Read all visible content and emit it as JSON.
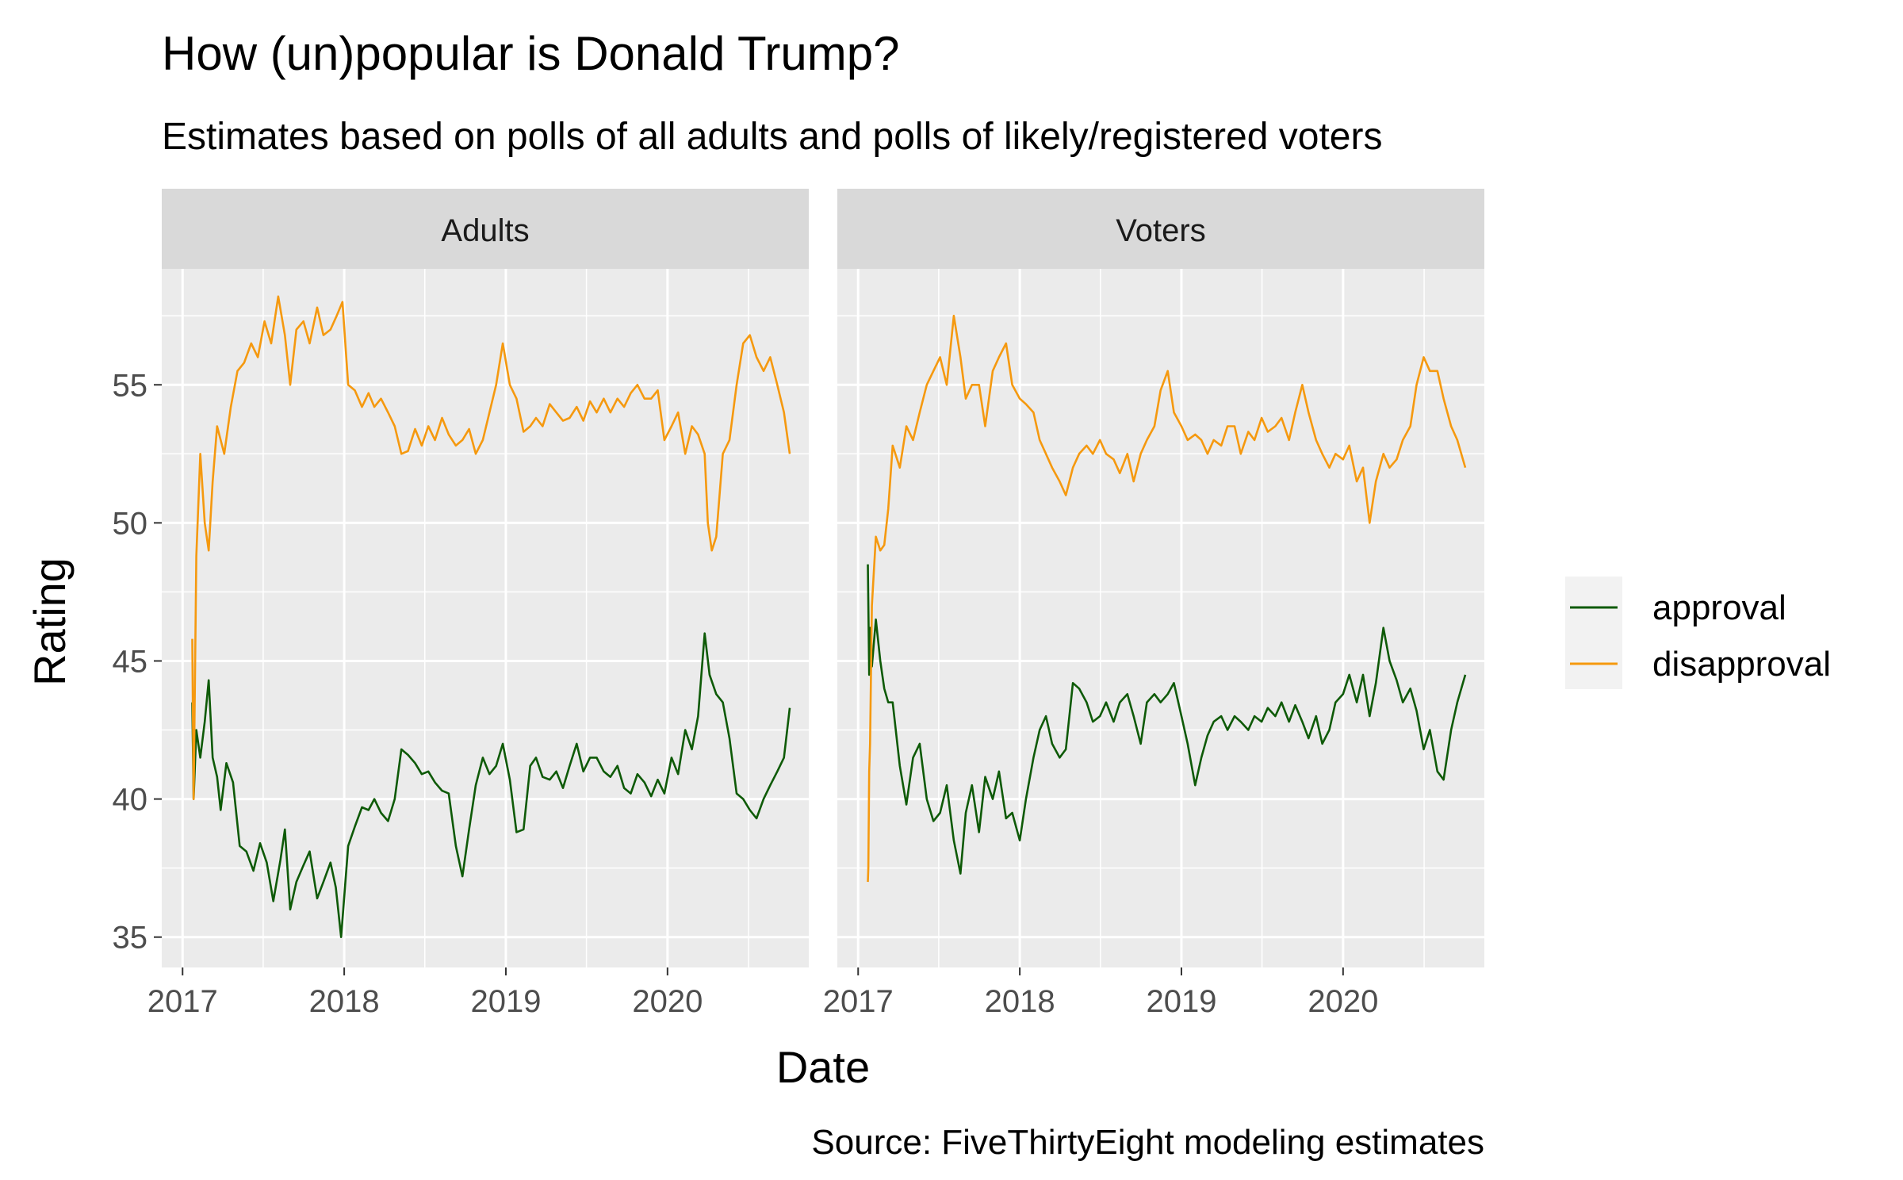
{
  "chart_data": {
    "type": "line",
    "title": "How (un)popular is Donald Trump?",
    "subtitle": "Estimates based on polls of all adults and polls of likely/registered voters",
    "caption": "Source: FiveThirtyEight modeling estimates",
    "xlabel": "Date",
    "ylabel": "Rating",
    "xlim": [
      "2016-11-15",
      "2020-11-15"
    ],
    "ylim": [
      33.9,
      59.2
    ],
    "x_ticks": [
      "2017-01-01",
      "2018-01-01",
      "2019-01-01",
      "2020-01-01"
    ],
    "x_tick_labels": [
      "2017",
      "2018",
      "2019",
      "2020"
    ],
    "y_ticks": [
      35,
      40,
      45,
      50,
      55
    ],
    "y_tick_labels": [
      "35",
      "40",
      "45",
      "50",
      "55"
    ],
    "grid": true,
    "legend": {
      "placement": "right",
      "entries": [
        {
          "name": "approval",
          "color": "#0e5a07"
        },
        {
          "name": "disapproval",
          "color": "#f5990f"
        }
      ]
    },
    "panels": [
      {
        "name": "Adults",
        "series": [
          {
            "name": "approval",
            "color": "#0e5a07",
            "x": [
              "2017-01-23",
              "2017-01-26",
              "2017-02-01",
              "2017-02-10",
              "2017-02-20",
              "2017-03-01",
              "2017-03-10",
              "2017-03-20",
              "2017-03-28",
              "2017-04-10",
              "2017-04-25",
              "2017-05-10",
              "2017-05-25",
              "2017-06-10",
              "2017-06-25",
              "2017-07-10",
              "2017-07-25",
              "2017-08-10",
              "2017-08-20",
              "2017-09-01",
              "2017-09-15",
              "2017-10-01",
              "2017-10-15",
              "2017-11-01",
              "2017-11-15",
              "2017-12-01",
              "2017-12-13",
              "2017-12-25",
              "2018-01-10",
              "2018-01-25",
              "2018-02-10",
              "2018-02-25",
              "2018-03-10",
              "2018-03-25",
              "2018-04-10",
              "2018-04-25",
              "2018-05-10",
              "2018-05-25",
              "2018-06-10",
              "2018-06-25",
              "2018-07-10",
              "2018-07-25",
              "2018-08-10",
              "2018-08-25",
              "2018-09-10",
              "2018-09-25",
              "2018-10-10",
              "2018-10-25",
              "2018-11-10",
              "2018-11-25",
              "2018-12-10",
              "2018-12-25",
              "2019-01-10",
              "2019-01-25",
              "2019-02-10",
              "2019-02-25",
              "2019-03-10",
              "2019-03-25",
              "2019-04-10",
              "2019-04-25",
              "2019-05-10",
              "2019-05-25",
              "2019-06-10",
              "2019-06-25",
              "2019-07-10",
              "2019-07-25",
              "2019-08-10",
              "2019-08-25",
              "2019-09-10",
              "2019-09-25",
              "2019-10-10",
              "2019-10-25",
              "2019-11-10",
              "2019-11-25",
              "2019-12-10",
              "2019-12-25",
              "2020-01-10",
              "2020-01-25",
              "2020-02-10",
              "2020-02-25",
              "2020-03-10",
              "2020-03-25",
              "2020-04-05",
              "2020-04-20",
              "2020-05-05",
              "2020-05-20",
              "2020-06-05",
              "2020-06-20",
              "2020-07-05",
              "2020-07-20",
              "2020-08-05",
              "2020-08-20",
              "2020-09-05",
              "2020-09-20",
              "2020-10-03"
            ],
            "y": [
              43.5,
              40.0,
              42.5,
              41.5,
              42.8,
              44.3,
              41.5,
              40.8,
              39.6,
              41.3,
              40.6,
              38.3,
              38.1,
              37.4,
              38.4,
              37.7,
              36.3,
              37.8,
              38.9,
              36.0,
              37.0,
              37.6,
              38.1,
              36.4,
              37.0,
              37.7,
              36.8,
              35.0,
              38.3,
              39.0,
              39.7,
              39.6,
              40.0,
              39.5,
              39.2,
              40.0,
              41.8,
              41.6,
              41.3,
              40.9,
              41.0,
              40.6,
              40.3,
              40.2,
              38.3,
              37.2,
              38.9,
              40.5,
              41.5,
              40.9,
              41.2,
              42.0,
              40.7,
              38.8,
              38.9,
              41.2,
              41.5,
              40.8,
              40.7,
              41.0,
              40.4,
              41.2,
              42.0,
              41.0,
              41.5,
              41.5,
              41.0,
              40.8,
              41.2,
              40.4,
              40.2,
              40.9,
              40.6,
              40.1,
              40.7,
              40.2,
              41.5,
              40.9,
              42.5,
              41.8,
              43.0,
              46.0,
              44.5,
              43.8,
              43.5,
              42.2,
              40.2,
              40.0,
              39.6,
              39.3,
              40.0,
              40.5,
              41.0,
              41.5,
              43.3
            ]
          },
          {
            "name": "disapproval",
            "color": "#f5990f",
            "x": [
              "2017-01-23",
              "2017-01-26",
              "2017-02-01",
              "2017-02-10",
              "2017-02-20",
              "2017-03-01",
              "2017-03-10",
              "2017-03-20",
              "2017-04-05",
              "2017-04-20",
              "2017-05-05",
              "2017-05-20",
              "2017-06-05",
              "2017-06-20",
              "2017-07-05",
              "2017-07-20",
              "2017-08-05",
              "2017-08-20",
              "2017-09-01",
              "2017-09-15",
              "2017-10-01",
              "2017-10-15",
              "2017-11-01",
              "2017-11-15",
              "2017-12-01",
              "2017-12-15",
              "2017-12-28",
              "2018-01-10",
              "2018-01-25",
              "2018-02-10",
              "2018-02-25",
              "2018-03-10",
              "2018-03-25",
              "2018-04-10",
              "2018-04-25",
              "2018-05-10",
              "2018-05-25",
              "2018-06-10",
              "2018-06-25",
              "2018-07-10",
              "2018-07-25",
              "2018-08-10",
              "2018-08-25",
              "2018-09-10",
              "2018-09-25",
              "2018-10-10",
              "2018-10-25",
              "2018-11-10",
              "2018-11-25",
              "2018-12-10",
              "2018-12-25",
              "2019-01-10",
              "2019-01-25",
              "2019-02-10",
              "2019-02-25",
              "2019-03-10",
              "2019-03-25",
              "2019-04-10",
              "2019-04-25",
              "2019-05-10",
              "2019-05-25",
              "2019-06-10",
              "2019-06-25",
              "2019-07-10",
              "2019-07-25",
              "2019-08-10",
              "2019-08-25",
              "2019-09-10",
              "2019-09-25",
              "2019-10-10",
              "2019-10-25",
              "2019-11-10",
              "2019-11-25",
              "2019-12-10",
              "2019-12-25",
              "2020-01-10",
              "2020-01-25",
              "2020-02-10",
              "2020-02-25",
              "2020-03-10",
              "2020-03-25",
              "2020-04-01",
              "2020-04-10",
              "2020-04-20",
              "2020-05-05",
              "2020-05-20",
              "2020-06-05",
              "2020-06-20",
              "2020-07-05",
              "2020-07-20",
              "2020-08-05",
              "2020-08-20",
              "2020-09-05",
              "2020-09-20",
              "2020-10-03"
            ],
            "y": [
              45.8,
              40.0,
              48.8,
              52.5,
              50.0,
              49.0,
              51.5,
              53.5,
              52.5,
              54.2,
              55.5,
              55.8,
              56.5,
              56.0,
              57.3,
              56.5,
              58.2,
              56.8,
              55.0,
              57.0,
              57.3,
              56.5,
              57.8,
              56.8,
              57.0,
              57.5,
              58.0,
              55.0,
              54.8,
              54.2,
              54.7,
              54.2,
              54.5,
              54.0,
              53.5,
              52.5,
              52.6,
              53.4,
              52.8,
              53.5,
              53.0,
              53.8,
              53.2,
              52.8,
              53.0,
              53.4,
              52.5,
              53.0,
              54.0,
              55.0,
              56.5,
              55.0,
              54.5,
              53.3,
              53.5,
              53.8,
              53.5,
              54.3,
              54.0,
              53.7,
              53.8,
              54.2,
              53.7,
              54.4,
              54.0,
              54.5,
              54.0,
              54.5,
              54.2,
              54.7,
              55.0,
              54.5,
              54.5,
              54.8,
              53.0,
              53.5,
              54.0,
              52.5,
              53.5,
              53.2,
              52.5,
              50.0,
              49.0,
              49.5,
              52.5,
              53.0,
              55.0,
              56.5,
              56.8,
              56.0,
              55.5,
              56.0,
              55.0,
              54.0,
              52.5
            ]
          }
        ]
      },
      {
        "name": "Voters",
        "series": [
          {
            "name": "approval",
            "color": "#0e5a07",
            "x": [
              "2017-01-23",
              "2017-01-26",
              "2017-01-28",
              "2017-02-01",
              "2017-02-10",
              "2017-02-20",
              "2017-03-01",
              "2017-03-10",
              "2017-03-20",
              "2017-04-05",
              "2017-04-20",
              "2017-05-05",
              "2017-05-20",
              "2017-06-05",
              "2017-06-20",
              "2017-07-05",
              "2017-07-20",
              "2017-08-05",
              "2017-08-20",
              "2017-09-01",
              "2017-09-15",
              "2017-10-01",
              "2017-10-15",
              "2017-11-01",
              "2017-11-15",
              "2017-12-01",
              "2017-12-15",
              "2018-01-01",
              "2018-01-15",
              "2018-02-01",
              "2018-02-15",
              "2018-03-01",
              "2018-03-15",
              "2018-04-01",
              "2018-04-15",
              "2018-05-01",
              "2018-05-15",
              "2018-06-01",
              "2018-06-15",
              "2018-07-01",
              "2018-07-15",
              "2018-08-01",
              "2018-08-15",
              "2018-09-01",
              "2018-09-15",
              "2018-10-01",
              "2018-10-15",
              "2018-11-01",
              "2018-11-15",
              "2018-12-01",
              "2018-12-15",
              "2019-01-01",
              "2019-01-15",
              "2019-02-01",
              "2019-02-15",
              "2019-03-01",
              "2019-03-15",
              "2019-04-01",
              "2019-04-15",
              "2019-05-01",
              "2019-05-15",
              "2019-06-01",
              "2019-06-15",
              "2019-07-01",
              "2019-07-15",
              "2019-08-01",
              "2019-08-15",
              "2019-09-01",
              "2019-09-15",
              "2019-10-01",
              "2019-10-15",
              "2019-11-01",
              "2019-11-15",
              "2019-12-01",
              "2019-12-15",
              "2020-01-01",
              "2020-01-15",
              "2020-02-01",
              "2020-02-15",
              "2020-03-01",
              "2020-03-15",
              "2020-04-01",
              "2020-04-15",
              "2020-05-01",
              "2020-05-15",
              "2020-06-01",
              "2020-06-15",
              "2020-07-01",
              "2020-07-15",
              "2020-08-01",
              "2020-08-15",
              "2020-09-01",
              "2020-09-15",
              "2020-10-03"
            ],
            "y": [
              48.5,
              44.5,
              46.2,
              44.8,
              46.5,
              45.0,
              44.0,
              43.5,
              43.5,
              41.2,
              39.8,
              41.5,
              42.0,
              40.0,
              39.2,
              39.5,
              40.5,
              38.5,
              37.3,
              39.5,
              40.5,
              38.8,
              40.8,
              40.0,
              41.0,
              39.3,
              39.5,
              38.5,
              40.0,
              41.5,
              42.5,
              43.0,
              42.0,
              41.5,
              41.8,
              44.2,
              44.0,
              43.5,
              42.8,
              43.0,
              43.5,
              42.8,
              43.5,
              43.8,
              43.0,
              42.0,
              43.5,
              43.8,
              43.5,
              43.8,
              44.2,
              43.0,
              42.0,
              40.5,
              41.5,
              42.3,
              42.8,
              43.0,
              42.5,
              43.0,
              42.8,
              42.5,
              43.0,
              42.8,
              43.3,
              43.0,
              43.5,
              42.8,
              43.4,
              42.8,
              42.2,
              43.0,
              42.0,
              42.5,
              43.5,
              43.8,
              44.5,
              43.5,
              44.5,
              43.0,
              44.2,
              46.2,
              45.0,
              44.3,
              43.5,
              44.0,
              43.2,
              41.8,
              42.5,
              41.0,
              40.7,
              42.5,
              43.5,
              44.5
            ]
          },
          {
            "name": "disapproval",
            "color": "#f5990f",
            "x": [
              "2017-01-23",
              "2017-01-24",
              "2017-01-26",
              "2017-01-28",
              "2017-02-01",
              "2017-02-10",
              "2017-02-20",
              "2017-03-01",
              "2017-03-10",
              "2017-03-20",
              "2017-04-05",
              "2017-04-20",
              "2017-05-05",
              "2017-05-20",
              "2017-06-05",
              "2017-06-20",
              "2017-07-05",
              "2017-07-20",
              "2017-08-05",
              "2017-08-20",
              "2017-09-01",
              "2017-09-15",
              "2017-10-01",
              "2017-10-15",
              "2017-11-01",
              "2017-11-15",
              "2017-12-01",
              "2017-12-15",
              "2018-01-01",
              "2018-01-15",
              "2018-02-01",
              "2018-02-15",
              "2018-03-01",
              "2018-03-15",
              "2018-04-01",
              "2018-04-15",
              "2018-05-01",
              "2018-05-15",
              "2018-06-01",
              "2018-06-15",
              "2018-07-01",
              "2018-07-15",
              "2018-08-01",
              "2018-08-15",
              "2018-09-01",
              "2018-09-15",
              "2018-10-01",
              "2018-10-15",
              "2018-11-01",
              "2018-11-15",
              "2018-12-01",
              "2018-12-15",
              "2019-01-01",
              "2019-01-15",
              "2019-02-01",
              "2019-02-15",
              "2019-03-01",
              "2019-03-15",
              "2019-04-01",
              "2019-04-15",
              "2019-05-01",
              "2019-05-15",
              "2019-06-01",
              "2019-06-15",
              "2019-07-01",
              "2019-07-15",
              "2019-08-01",
              "2019-08-15",
              "2019-09-01",
              "2019-09-15",
              "2019-10-01",
              "2019-10-15",
              "2019-11-01",
              "2019-11-15",
              "2019-12-01",
              "2019-12-15",
              "2020-01-01",
              "2020-01-15",
              "2020-02-01",
              "2020-02-15",
              "2020-03-01",
              "2020-03-15",
              "2020-04-01",
              "2020-04-15",
              "2020-05-01",
              "2020-05-15",
              "2020-06-01",
              "2020-06-15",
              "2020-07-01",
              "2020-07-15",
              "2020-08-01",
              "2020-08-15",
              "2020-09-01",
              "2020-09-15",
              "2020-10-03"
            ],
            "y": [
              37.0,
              37.5,
              41.0,
              42.0,
              47.0,
              49.5,
              49.0,
              49.2,
              50.5,
              52.8,
              52.0,
              53.5,
              53.0,
              54.0,
              55.0,
              55.5,
              56.0,
              55.0,
              57.5,
              56.0,
              54.5,
              55.0,
              55.0,
              53.5,
              55.5,
              56.0,
              56.5,
              55.0,
              54.5,
              54.3,
              54.0,
              53.0,
              52.5,
              52.0,
              51.5,
              51.0,
              52.0,
              52.5,
              52.8,
              52.5,
              53.0,
              52.5,
              52.3,
              51.8,
              52.5,
              51.5,
              52.5,
              53.0,
              53.5,
              54.8,
              55.5,
              54.0,
              53.5,
              53.0,
              53.2,
              53.0,
              52.5,
              53.0,
              52.8,
              53.5,
              53.5,
              52.5,
              53.3,
              53.0,
              53.8,
              53.3,
              53.5,
              53.8,
              53.0,
              54.0,
              55.0,
              54.0,
              53.0,
              52.5,
              52.0,
              52.5,
              52.3,
              52.8,
              51.5,
              52.0,
              50.0,
              51.5,
              52.5,
              52.0,
              52.3,
              53.0,
              53.5,
              55.0,
              56.0,
              55.5,
              55.5,
              54.5,
              53.5,
              53.0,
              52.0
            ]
          }
        ]
      }
    ]
  }
}
